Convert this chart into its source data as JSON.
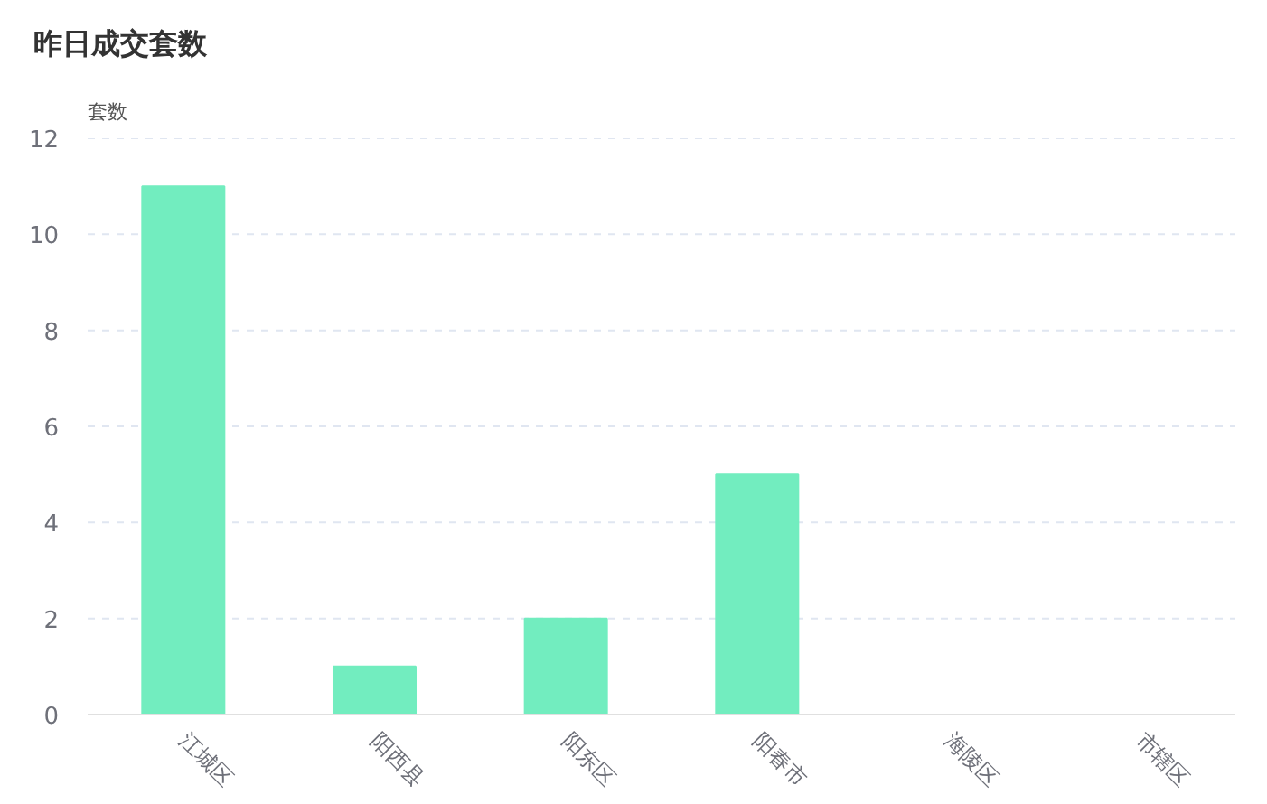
{
  "chart_data": {
    "type": "bar",
    "title": "昨日成交套数",
    "ylabel": "套数",
    "categories": [
      "江城区",
      "阳西县",
      "阳东区",
      "阳春市",
      "海陵区",
      "市辖区"
    ],
    "values": [
      11,
      1,
      2,
      5,
      0,
      0
    ],
    "color": "#72edbf",
    "ylim": [
      0,
      12
    ],
    "yticks": [
      0,
      2,
      4,
      6,
      8,
      10,
      12
    ],
    "grid": "y"
  }
}
